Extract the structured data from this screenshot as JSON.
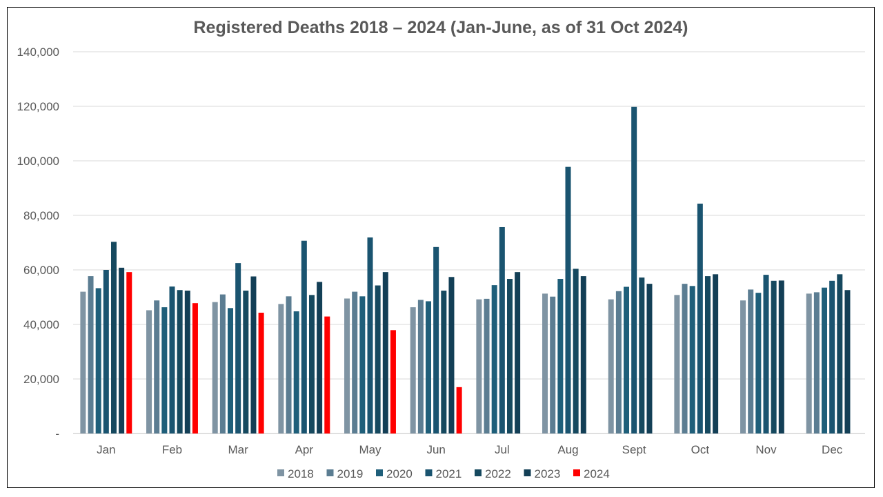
{
  "chart_data": {
    "type": "bar",
    "title": "Registered Deaths 2018 – 2024 (Jan-June, as of 31 Oct 2024)",
    "xlabel": "",
    "ylabel": "",
    "ylim": [
      0,
      140000
    ],
    "yticks": [
      0,
      20000,
      40000,
      60000,
      80000,
      100000,
      120000,
      140000
    ],
    "ytick_labels": [
      "-",
      "20,000",
      "40,000",
      "60,000",
      "80,000",
      "100,000",
      "120,000",
      "140,000"
    ],
    "categories": [
      "Jan",
      "Feb",
      "Mar",
      "Apr",
      "May",
      "Jun",
      "Jul",
      "Aug",
      "Sept",
      "Oct",
      "Nov",
      "Dec"
    ],
    "grid": true,
    "legend_position": "bottom",
    "series": [
      {
        "name": "2018",
        "color": "#7f94a3",
        "values": [
          52000,
          45200,
          48200,
          47500,
          49500,
          46300,
          49200,
          51300,
          49200,
          50800,
          48800,
          51300
        ]
      },
      {
        "name": "2019",
        "color": "#5b7d92",
        "values": [
          57700,
          48800,
          51000,
          50300,
          52000,
          49000,
          49400,
          50200,
          52200,
          54900,
          52800,
          51800
        ]
      },
      {
        "name": "2020",
        "color": "#1f5f7a",
        "values": [
          53300,
          46300,
          46000,
          44800,
          50300,
          48500,
          54400,
          56700,
          53800,
          54100,
          51600,
          53500
        ]
      },
      {
        "name": "2021",
        "color": "#1a5470",
        "values": [
          60000,
          53900,
          62500,
          70700,
          71900,
          68400,
          75700,
          97800,
          119800,
          84300,
          58200,
          56000
        ]
      },
      {
        "name": "2022",
        "color": "#16495f",
        "values": [
          70300,
          52600,
          52400,
          50800,
          54300,
          52400,
          56700,
          60400,
          57200,
          57700,
          56000,
          58400
        ]
      },
      {
        "name": "2023",
        "color": "#133f56",
        "values": [
          60800,
          52400,
          57600,
          55600,
          59200,
          57400,
          59200,
          57700,
          54900,
          58400,
          56100,
          52600
        ]
      },
      {
        "name": "2024",
        "color": "#ff0000",
        "values": [
          59200,
          47800,
          44300,
          42900,
          37900,
          17000,
          null,
          null,
          null,
          null,
          null,
          null
        ]
      }
    ]
  }
}
